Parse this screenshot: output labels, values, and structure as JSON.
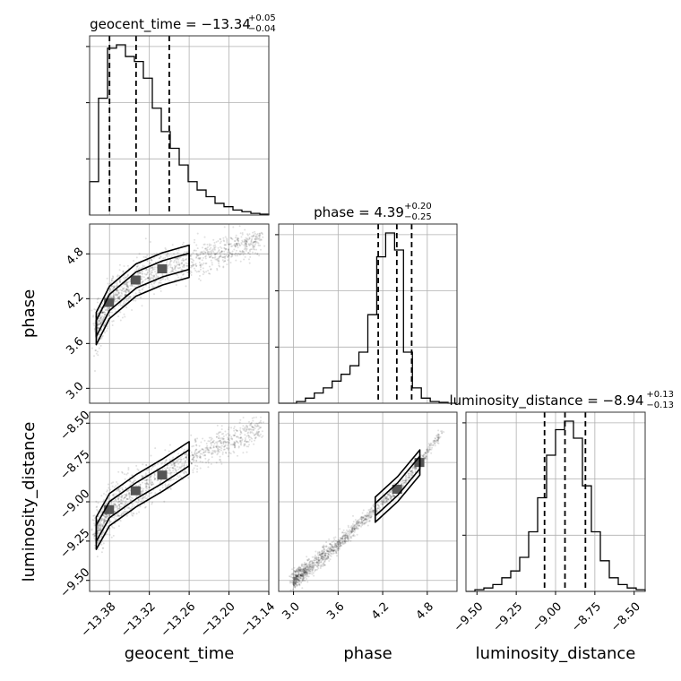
{
  "chart_data": {
    "type": "corner",
    "parameters": [
      "geocent_time",
      "phase",
      "luminosity_distance"
    ],
    "titles": [
      {
        "param": "geocent_time",
        "text": "geocent_time = −13.34",
        "plus": "+0.05",
        "minus": "−0.04"
      },
      {
        "param": "phase",
        "text": "phase = 4.39",
        "plus": "+0.20",
        "minus": "−0.25"
      },
      {
        "param": "luminosity_distance",
        "text": "luminosity_distance = −8.94",
        "plus": "+0.13",
        "minus": "−0.13"
      }
    ],
    "axis_labels": [
      "geocent_time",
      "phase",
      "luminosity_distance"
    ],
    "ranges": {
      "geocent_time": [
        -13.41,
        -13.14
      ],
      "phase": [
        2.8,
        5.2
      ],
      "luminosity_distance": [
        -9.57,
        -8.43
      ]
    },
    "ticks": {
      "geocent_time": {
        "values": [
          -13.38,
          -13.32,
          -13.26,
          -13.2,
          -13.14
        ],
        "labels": [
          "−13.38",
          "−13.32",
          "−13.26",
          "−13.20",
          "−13.14"
        ]
      },
      "phase": {
        "values": [
          3.0,
          3.6,
          4.2,
          4.8
        ],
        "labels": [
          "3.0",
          "3.6",
          "4.2",
          "4.8"
        ]
      },
      "luminosity_distance": {
        "values": [
          -9.5,
          -9.25,
          -9.0,
          -8.75,
          -8.5
        ],
        "labels": [
          "−9.50",
          "−9.25",
          "−9.00",
          "−8.75",
          "−8.50"
        ]
      }
    },
    "histograms": [
      {
        "param": "geocent_time",
        "bin_edges": [
          -13.41,
          -13.3965,
          -13.383,
          -13.3695,
          -13.356,
          -13.3425,
          -13.329,
          -13.3155,
          -13.302,
          -13.2885,
          -13.275,
          -13.2615,
          -13.248,
          -13.2345,
          -13.221,
          -13.2075,
          -13.194,
          -13.1805,
          -13.167,
          -13.1535,
          -13.14
        ],
        "counts": [
          0.2,
          0.7,
          1.0,
          1.02,
          0.95,
          0.92,
          0.82,
          0.64,
          0.5,
          0.4,
          0.3,
          0.2,
          0.15,
          0.11,
          0.07,
          0.05,
          0.03,
          0.02,
          0.01,
          0.005
        ],
        "quantiles": [
          -13.38,
          -13.34,
          -13.29
        ]
      },
      {
        "param": "phase",
        "bin_edges": [
          2.8,
          2.92,
          3.04,
          3.16,
          3.28,
          3.4,
          3.52,
          3.64,
          3.76,
          3.88,
          4.0,
          4.12,
          4.24,
          4.36,
          4.48,
          4.6,
          4.72,
          4.84,
          4.96,
          5.08,
          5.2
        ],
        "counts": [
          0.0,
          0.0,
          0.01,
          0.03,
          0.06,
          0.09,
          0.13,
          0.17,
          0.22,
          0.3,
          0.52,
          0.86,
          1.0,
          0.9,
          0.3,
          0.09,
          0.03,
          0.01,
          0.005,
          0.0
        ],
        "quantiles": [
          4.14,
          4.39,
          4.59
        ]
      },
      {
        "param": "luminosity_distance",
        "bin_edges": [
          -9.57,
          -9.513,
          -9.456,
          -9.399,
          -9.342,
          -9.285,
          -9.228,
          -9.171,
          -9.114,
          -9.057,
          -9.0,
          -8.943,
          -8.886,
          -8.829,
          -8.772,
          -8.715,
          -8.658,
          -8.601,
          -8.544,
          -8.487,
          -8.43
        ],
        "counts": [
          0.0,
          0.01,
          0.02,
          0.04,
          0.08,
          0.12,
          0.2,
          0.35,
          0.55,
          0.8,
          0.95,
          1.0,
          0.9,
          0.62,
          0.35,
          0.18,
          0.08,
          0.04,
          0.02,
          0.01
        ],
        "quantiles": [
          -9.07,
          -8.94,
          -8.81
        ]
      }
    ],
    "scatter_relations": [
      {
        "x": "geocent_time",
        "y": "phase",
        "trend": [
          [
            -13.4,
            3.8
          ],
          [
            -13.38,
            4.15
          ],
          [
            -13.34,
            4.45
          ],
          [
            -13.3,
            4.6
          ],
          [
            -13.26,
            4.7
          ],
          [
            -13.2,
            4.85
          ],
          [
            -13.15,
            5.0
          ]
        ],
        "contours": 2
      },
      {
        "x": "geocent_time",
        "y": "luminosity_distance",
        "trend": [
          [
            -13.4,
            -9.2
          ],
          [
            -13.38,
            -9.05
          ],
          [
            -13.34,
            -8.93
          ],
          [
            -13.3,
            -8.83
          ],
          [
            -13.26,
            -8.72
          ],
          [
            -13.2,
            -8.62
          ],
          [
            -13.15,
            -8.52
          ]
        ],
        "contours": 2
      },
      {
        "x": "phase",
        "y": "luminosity_distance",
        "trend": [
          [
            3.0,
            -9.5
          ],
          [
            3.6,
            -9.27
          ],
          [
            4.1,
            -9.05
          ],
          [
            4.4,
            -8.92
          ],
          [
            4.7,
            -8.75
          ],
          [
            5.0,
            -8.55
          ]
        ],
        "contours": 2
      }
    ],
    "grid": true,
    "quantile_line_style": "dashed black"
  }
}
